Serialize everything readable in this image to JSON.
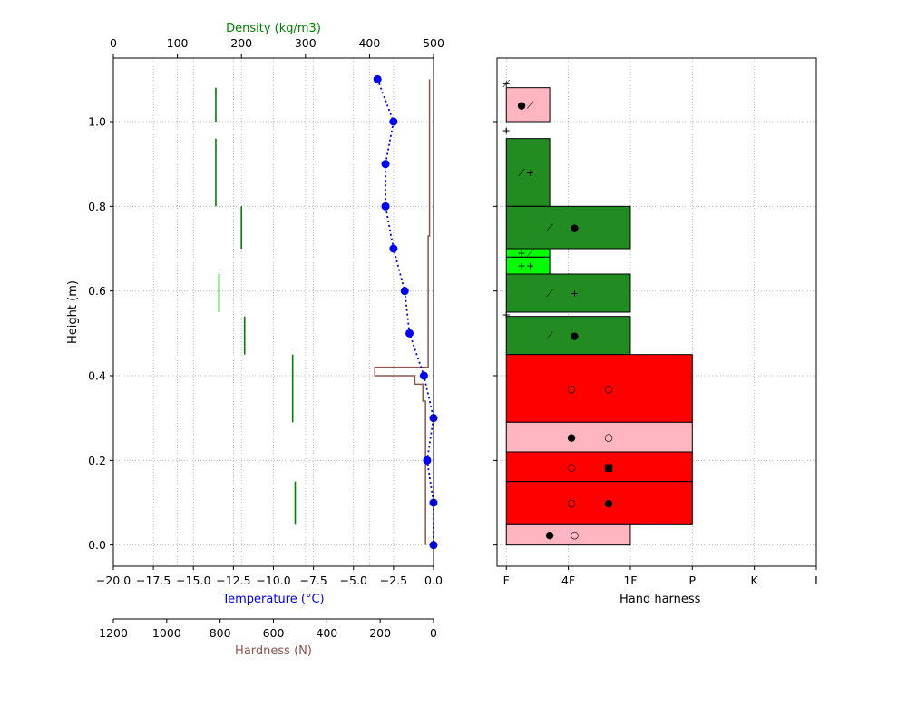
{
  "chart_data": [
    {
      "type": "line",
      "ylabel": "Height (m)",
      "ylim": [
        -0.05,
        1.15
      ],
      "y_ticks": [
        "0.0",
        "0.2",
        "0.4",
        "0.6",
        "0.8",
        "1.0"
      ],
      "grid": true,
      "temperature_axis": {
        "label": "Temperature (°C)",
        "range": [
          -20,
          0
        ],
        "ticks": [
          "−20.0",
          "−17.5",
          "−15.0",
          "−12.5",
          "−10.0",
          "−7.5",
          "−5.0",
          "−2.5",
          "0.0"
        ],
        "color": "#0000ff"
      },
      "density_axis": {
        "label": "Density (kg/m3)",
        "range": [
          0,
          500
        ],
        "ticks": [
          "0",
          "100",
          "200",
          "300",
          "400",
          "500"
        ],
        "color": "#008000"
      },
      "hardness_axis": {
        "label": "Hardness (N)",
        "range": [
          1200,
          0
        ],
        "ticks": [
          "1200",
          "1000",
          "800",
          "600",
          "400",
          "200",
          "0"
        ],
        "color": "#8c564b"
      },
      "temperature_profile": {
        "height": [
          1.1,
          1.0,
          0.9,
          0.8,
          0.7,
          0.6,
          0.5,
          0.4,
          0.3,
          0.2,
          0.1,
          0.0
        ],
        "temperature": [
          -3.5,
          -2.5,
          -3.0,
          -3.0,
          -2.5,
          -1.8,
          -1.5,
          -0.6,
          0.0,
          -0.4,
          0.0,
          0.0
        ]
      },
      "density_layers": [
        {
          "density": 160,
          "bottom": 1.0,
          "top": 1.08
        },
        {
          "density": 160,
          "bottom": 0.8,
          "top": 0.96
        },
        {
          "density": 200,
          "bottom": 0.7,
          "top": 0.8
        },
        {
          "density": 165,
          "bottom": 0.55,
          "top": 0.64
        },
        {
          "density": 205,
          "bottom": 0.45,
          "top": 0.54
        },
        {
          "density": 280,
          "bottom": 0.29,
          "top": 0.45
        },
        {
          "density": 284,
          "bottom": 0.05,
          "top": 0.15
        }
      ],
      "hardness_profile": {
        "height": [
          1.1,
          0.73,
          0.73,
          0.42,
          0.42,
          0.4,
          0.4,
          0.38,
          0.38,
          0.34,
          0.34,
          0.0
        ],
        "hardness": [
          15,
          15,
          20,
          20,
          220,
          220,
          70,
          70,
          40,
          40,
          30,
          30
        ]
      }
    },
    {
      "type": "bar",
      "xlabel": "Hand harness",
      "x_ticks": [
        "F",
        "4F",
        "1F",
        "P",
        "K",
        "I"
      ],
      "x_tick_values": [
        1,
        2,
        3,
        4,
        5,
        6
      ],
      "ylim": [
        -0.05,
        1.15
      ],
      "grid": true,
      "colors": {
        "pink": "#ffb6c1",
        "lime": "#00ff00",
        "forestgreen": "#228b22",
        "red": "#ff0000"
      },
      "layers": [
        {
          "bottom": 1.08,
          "top": 1.1,
          "hardness": 1.0,
          "color": "lime",
          "grain_symbols": [
            "+",
            "⟋"
          ]
        },
        {
          "bottom": 1.0,
          "top": 1.08,
          "hardness": 1.7,
          "color": "pink",
          "grain_symbols": [
            "●",
            "⟋"
          ]
        },
        {
          "bottom": 0.96,
          "top": 1.0,
          "hardness": 1.0,
          "color": "lime",
          "grain_symbols": [
            "+",
            "+"
          ]
        },
        {
          "bottom": 0.8,
          "top": 0.96,
          "hardness": 1.7,
          "color": "forestgreen",
          "grain_symbols": [
            "⟋",
            "+"
          ]
        },
        {
          "bottom": 0.7,
          "top": 0.8,
          "hardness": 3.0,
          "color": "forestgreen",
          "grain_symbols": [
            "⟋",
            "●"
          ]
        },
        {
          "bottom": 0.68,
          "top": 0.7,
          "hardness": 1.7,
          "color": "lime",
          "grain_symbols": [
            "+",
            "⟋"
          ]
        },
        {
          "bottom": 0.64,
          "top": 0.68,
          "hardness": 1.7,
          "color": "lime",
          "grain_symbols": [
            "+",
            "+"
          ]
        },
        {
          "bottom": 0.55,
          "top": 0.64,
          "hardness": 3.0,
          "color": "forestgreen",
          "grain_symbols": [
            "⟋",
            "+"
          ]
        },
        {
          "bottom": 0.54,
          "top": 0.55,
          "hardness": 1.0,
          "color": "lime",
          "grain_symbols": [
            "+",
            "+"
          ]
        },
        {
          "bottom": 0.45,
          "top": 0.54,
          "hardness": 3.0,
          "color": "forestgreen",
          "grain_symbols": [
            "⟋",
            "●"
          ]
        },
        {
          "bottom": 0.29,
          "top": 0.45,
          "hardness": 4.0,
          "color": "red",
          "grain_symbols": [
            "○",
            "○"
          ]
        },
        {
          "bottom": 0.22,
          "top": 0.29,
          "hardness": 4.0,
          "color": "pink",
          "grain_symbols": [
            "●",
            "○"
          ]
        },
        {
          "bottom": 0.15,
          "top": 0.22,
          "hardness": 4.0,
          "color": "red",
          "grain_symbols": [
            "○",
            "■"
          ]
        },
        {
          "bottom": 0.05,
          "top": 0.15,
          "hardness": 4.0,
          "color": "red",
          "grain_symbols": [
            "○",
            "●"
          ]
        },
        {
          "bottom": 0.0,
          "top": 0.05,
          "hardness": 3.0,
          "color": "pink",
          "grain_symbols": [
            "●",
            "○"
          ]
        }
      ]
    }
  ]
}
